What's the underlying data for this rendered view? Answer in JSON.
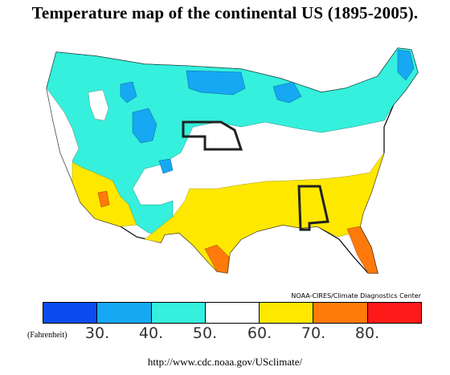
{
  "title": "Temperature map of the continental US (1895-2005).",
  "credit": "NOAA-CIRES/Climate Diagnostics Center",
  "legend": {
    "unit": "(Fahrenheit)",
    "colors": [
      "#0a4cf0",
      "#16a8f3",
      "#34f0dc",
      "#ffffff",
      "#ffe800",
      "#ff7a0a",
      "#ff1a1a"
    ],
    "ticks": [
      "30.",
      "40.",
      "50.",
      "60.",
      "70.",
      "80."
    ]
  },
  "url": "http://www.cdc.noaa.gov/USclimate/",
  "map": {
    "band_colors": {
      "below_30": "#0a4cf0",
      "30_40": "#16a8f3",
      "40_50": "#34f0dc",
      "50_60": "#ffffff",
      "60_70": "#ffe800",
      "70_80": "#ff7a0a"
    },
    "highlighted_states": [
      "Nebraska",
      "Alabama"
    ]
  }
}
